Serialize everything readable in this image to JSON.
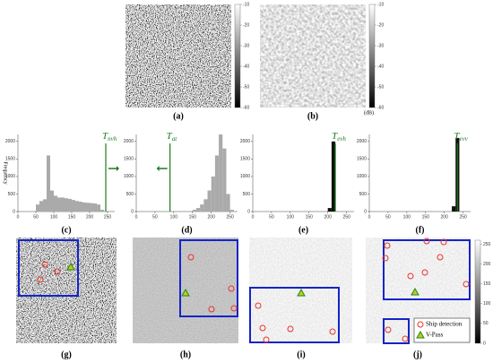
{
  "top_images": [
    {
      "label": "(a)"
    },
    {
      "label": "(b)"
    }
  ],
  "colorbars": [
    {
      "ticks": [
        -10,
        -20,
        -30,
        -40,
        -50,
        -60
      ],
      "lim": [
        -60,
        -10
      ]
    },
    {
      "ticks": [
        -10,
        -20,
        -30,
        -40,
        -50,
        -60
      ],
      "lim": [
        -60,
        -10
      ],
      "unit": "(dB)"
    },
    {
      "ticks": [
        0,
        50,
        100,
        150,
        200,
        250
      ],
      "lim": [
        0,
        260
      ]
    }
  ],
  "histograms": [
    {
      "label": "(c)",
      "ylabel": "Frequency",
      "threshold": {
        "symbol": "T",
        "subscript": "nvh",
        "value": 245
      },
      "xlim": [
        0,
        270
      ],
      "ylim": [
        0,
        2200
      ],
      "xticks": [
        0,
        50,
        100,
        150,
        200,
        250
      ],
      "yticks": [
        0,
        500,
        1000,
        1500,
        2000
      ],
      "bins": [
        0,
        10,
        20,
        30,
        40,
        50,
        60,
        70,
        80,
        90,
        100,
        110,
        120,
        130,
        140,
        150,
        160,
        170,
        180,
        190,
        200,
        210,
        220,
        230,
        240,
        250,
        260
      ],
      "values": [
        0,
        0,
        0,
        0,
        0,
        200,
        300,
        350,
        1600,
        600,
        450,
        400,
        400,
        380,
        360,
        330,
        300,
        280,
        260,
        250,
        240,
        230,
        200,
        50,
        0,
        0
      ]
    },
    {
      "label": "(d)",
      "threshold": {
        "symbol": "T",
        "subscript": "at",
        "value": 90
      },
      "xlim": [
        0,
        270
      ],
      "ylim": [
        0,
        2200
      ],
      "xticks": [
        0,
        50,
        100,
        150,
        200,
        250
      ],
      "yticks": [
        0,
        500,
        1000,
        1500,
        2000
      ],
      "bins": [
        0,
        10,
        20,
        30,
        40,
        50,
        60,
        70,
        80,
        90,
        100,
        110,
        120,
        130,
        140,
        150,
        160,
        170,
        180,
        190,
        200,
        210,
        220,
        230,
        240,
        250,
        260
      ],
      "values": [
        0,
        0,
        0,
        0,
        0,
        0,
        0,
        0,
        0,
        0,
        0,
        0,
        0,
        0,
        0,
        50,
        100,
        200,
        350,
        600,
        1000,
        1600,
        2200,
        1800,
        500,
        50
      ]
    },
    {
      "label": "(e)",
      "threshold": {
        "symbol": "T",
        "subscript": "evh",
        "value": 220
      },
      "xlim": [
        0,
        270
      ],
      "ylim": [
        0,
        2200
      ],
      "xticks": [
        0,
        50,
        100,
        150,
        200,
        250
      ],
      "yticks": [
        0,
        500,
        1000,
        1500,
        2000
      ],
      "bins": [
        0,
        10,
        20,
        30,
        40,
        50,
        60,
        70,
        80,
        90,
        100,
        110,
        120,
        130,
        140,
        150,
        160,
        170,
        180,
        190,
        200,
        210,
        220,
        230,
        240,
        250,
        260
      ],
      "values": [
        0,
        0,
        0,
        0,
        0,
        0,
        0,
        0,
        0,
        0,
        0,
        0,
        0,
        0,
        0,
        0,
        0,
        0,
        0,
        0,
        100,
        2000,
        0,
        0,
        0,
        0
      ]
    },
    {
      "label": "(f)",
      "threshold": {
        "symbol": "T",
        "subscript": "evv",
        "value": 235
      },
      "xlim": [
        0,
        270
      ],
      "ylim": [
        0,
        2200
      ],
      "xticks": [
        0,
        50,
        100,
        150,
        200,
        250
      ],
      "yticks": [
        0,
        500,
        1000,
        1500,
        2000
      ],
      "bins": [
        0,
        10,
        20,
        30,
        40,
        50,
        60,
        70,
        80,
        90,
        100,
        110,
        120,
        130,
        140,
        150,
        160,
        170,
        180,
        190,
        200,
        210,
        220,
        230,
        240,
        250,
        260
      ],
      "values": [
        0,
        0,
        0,
        0,
        0,
        0,
        0,
        0,
        0,
        0,
        0,
        0,
        0,
        0,
        0,
        0,
        0,
        0,
        0,
        0,
        0,
        0,
        150,
        2100,
        0,
        0
      ]
    }
  ],
  "bottom_images": [
    {
      "label": "(g)"
    },
    {
      "label": "(h)"
    },
    {
      "label": "(i)"
    },
    {
      "label": "(j)"
    }
  ],
  "legend": [
    "Ship detection",
    "V-Pass"
  ]
}
